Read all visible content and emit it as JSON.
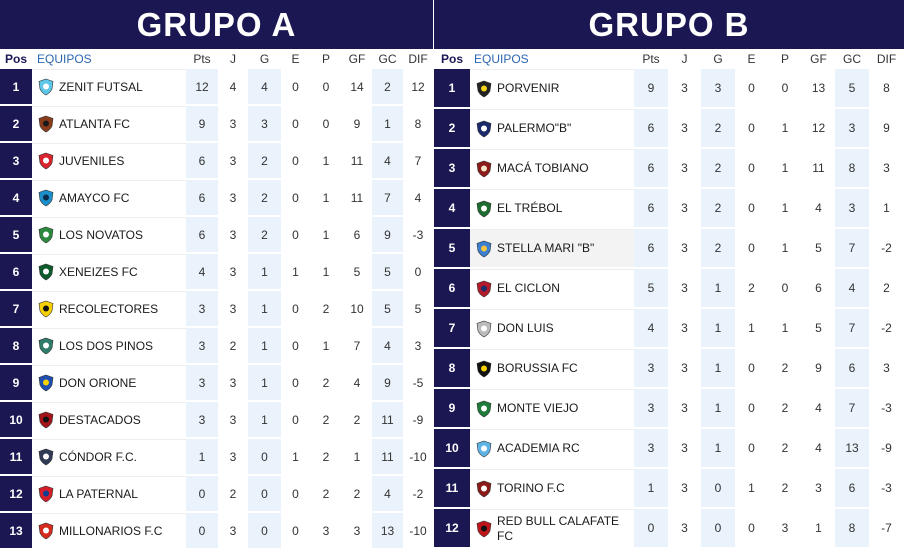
{
  "group_a": {
    "title": "GRUPO A",
    "headers": [
      "Pos",
      "EQUIPOS",
      "Pts",
      "J",
      "G",
      "E",
      "P",
      "GF",
      "GC",
      "DIF"
    ],
    "rows": [
      {
        "pos": "1",
        "team": "ZENIT FUTSAL",
        "logo": "zenit-futsal-logo",
        "pts": "12",
        "j": "4",
        "g": "4",
        "e": "0",
        "p": "0",
        "gf": "14",
        "gc": "2",
        "dif": "12"
      },
      {
        "pos": "2",
        "team": "ATLANTA FC",
        "logo": "atlanta-fc-logo",
        "pts": "9",
        "j": "3",
        "g": "3",
        "e": "0",
        "p": "0",
        "gf": "9",
        "gc": "1",
        "dif": "8"
      },
      {
        "pos": "3",
        "team": "JUVENILES",
        "logo": "juveniles-logo",
        "pts": "6",
        "j": "3",
        "g": "2",
        "e": "0",
        "p": "1",
        "gf": "11",
        "gc": "4",
        "dif": "7"
      },
      {
        "pos": "4",
        "team": "AMAYCO FC",
        "logo": "amayco-fc-logo",
        "pts": "6",
        "j": "3",
        "g": "2",
        "e": "0",
        "p": "1",
        "gf": "11",
        "gc": "7",
        "dif": "4"
      },
      {
        "pos": "5",
        "team": "LOS NOVATOS",
        "logo": "los-novatos-logo",
        "pts": "6",
        "j": "3",
        "g": "2",
        "e": "0",
        "p": "1",
        "gf": "6",
        "gc": "9",
        "dif": "-3"
      },
      {
        "pos": "6",
        "team": "XENEIZES FC",
        "logo": "xeneizes-fc-logo",
        "pts": "4",
        "j": "3",
        "g": "1",
        "e": "1",
        "p": "1",
        "gf": "5",
        "gc": "5",
        "dif": "0"
      },
      {
        "pos": "7",
        "team": "RECOLECTORES",
        "logo": "recolectores-logo",
        "pts": "3",
        "j": "3",
        "g": "1",
        "e": "0",
        "p": "2",
        "gf": "10",
        "gc": "5",
        "dif": "5"
      },
      {
        "pos": "8",
        "team": "LOS DOS PINOS",
        "logo": "los-dos-pinos-logo",
        "pts": "3",
        "j": "2",
        "g": "1",
        "e": "0",
        "p": "1",
        "gf": "7",
        "gc": "4",
        "dif": "3"
      },
      {
        "pos": "9",
        "team": "DON ORIONE",
        "logo": "don-orione-logo",
        "pts": "3",
        "j": "3",
        "g": "1",
        "e": "0",
        "p": "2",
        "gf": "4",
        "gc": "9",
        "dif": "-5"
      },
      {
        "pos": "10",
        "team": "DESTACADOS",
        "logo": "destacados-logo",
        "pts": "3",
        "j": "3",
        "g": "1",
        "e": "0",
        "p": "2",
        "gf": "2",
        "gc": "11",
        "dif": "-9"
      },
      {
        "pos": "11",
        "team": "CÓNDOR F.C.",
        "logo": "condor-fc-logo",
        "pts": "1",
        "j": "3",
        "g": "0",
        "e": "1",
        "p": "2",
        "gf": "1",
        "gc": "11",
        "dif": "-10"
      },
      {
        "pos": "12",
        "team": "LA PATERNAL",
        "logo": "la-paternal-logo",
        "pts": "0",
        "j": "2",
        "g": "0",
        "e": "0",
        "p": "2",
        "gf": "2",
        "gc": "4",
        "dif": "-2"
      },
      {
        "pos": "13",
        "team": "MILLONARIOS F.C",
        "logo": "millonarios-fc-logo",
        "pts": "0",
        "j": "3",
        "g": "0",
        "e": "0",
        "p": "3",
        "gf": "3",
        "gc": "13",
        "dif": "-10"
      }
    ]
  },
  "group_b": {
    "title": "GRUPO B",
    "headers": [
      "Pos",
      "EQUIPOS",
      "Pts",
      "J",
      "G",
      "E",
      "P",
      "GF",
      "GC",
      "DIF"
    ],
    "rows": [
      {
        "pos": "1",
        "team": "PORVENIR",
        "logo": "porvenir-logo",
        "pts": "9",
        "j": "3",
        "g": "3",
        "e": "0",
        "p": "0",
        "gf": "13",
        "gc": "5",
        "dif": "8"
      },
      {
        "pos": "2",
        "team": "PALERMO\"B\"",
        "logo": "palermo-b-logo",
        "pts": "6",
        "j": "3",
        "g": "2",
        "e": "0",
        "p": "1",
        "gf": "12",
        "gc": "3",
        "dif": "9"
      },
      {
        "pos": "3",
        "team": "MACÁ TOBIANO",
        "logo": "maca-tobiano-logo",
        "pts": "6",
        "j": "3",
        "g": "2",
        "e": "0",
        "p": "1",
        "gf": "11",
        "gc": "8",
        "dif": "3"
      },
      {
        "pos": "4",
        "team": "EL TRÉBOL",
        "logo": "el-trebol-logo",
        "pts": "6",
        "j": "3",
        "g": "2",
        "e": "0",
        "p": "1",
        "gf": "4",
        "gc": "3",
        "dif": "1"
      },
      {
        "pos": "5",
        "team": "STELLA MARI \"B\"",
        "logo": "stella-mari-b-logo",
        "pts": "6",
        "j": "3",
        "g": "2",
        "e": "0",
        "p": "1",
        "gf": "5",
        "gc": "7",
        "dif": "-2"
      },
      {
        "pos": "6",
        "team": "EL CICLON",
        "logo": "el-ciclon-logo",
        "pts": "5",
        "j": "3",
        "g": "1",
        "e": "2",
        "p": "0",
        "gf": "6",
        "gc": "4",
        "dif": "2"
      },
      {
        "pos": "7",
        "team": "DON LUIS",
        "logo": "don-luis-logo",
        "pts": "4",
        "j": "3",
        "g": "1",
        "e": "1",
        "p": "1",
        "gf": "5",
        "gc": "7",
        "dif": "-2"
      },
      {
        "pos": "8",
        "team": "BORUSSIA FC",
        "logo": "borussia-fc-logo",
        "pts": "3",
        "j": "3",
        "g": "1",
        "e": "0",
        "p": "2",
        "gf": "9",
        "gc": "6",
        "dif": "3"
      },
      {
        "pos": "9",
        "team": "MONTE VIEJO",
        "logo": "monte-viejo-logo",
        "pts": "3",
        "j": "3",
        "g": "1",
        "e": "0",
        "p": "2",
        "gf": "4",
        "gc": "7",
        "dif": "-3"
      },
      {
        "pos": "10",
        "team": "ACADEMIA RC",
        "logo": "academia-rc-logo",
        "pts": "3",
        "j": "3",
        "g": "1",
        "e": "0",
        "p": "2",
        "gf": "4",
        "gc": "13",
        "dif": "-9"
      },
      {
        "pos": "11",
        "team": "TORINO F.C",
        "logo": "torino-fc-logo",
        "pts": "1",
        "j": "3",
        "g": "0",
        "e": "1",
        "p": "2",
        "gf": "3",
        "gc": "6",
        "dif": "-3"
      },
      {
        "pos": "12",
        "team": "RED BULL CALAFATE FC",
        "logo": "red-bull-calafate-fc-logo",
        "pts": "0",
        "j": "3",
        "g": "0",
        "e": "0",
        "p": "3",
        "gf": "1",
        "gc": "8",
        "dif": "-7"
      }
    ]
  },
  "colors": {
    "banner": "#1a1752",
    "pos_cell": "#1a1752",
    "highlight_col": "#eaf2fb",
    "header_team": "#2c66b0"
  }
}
